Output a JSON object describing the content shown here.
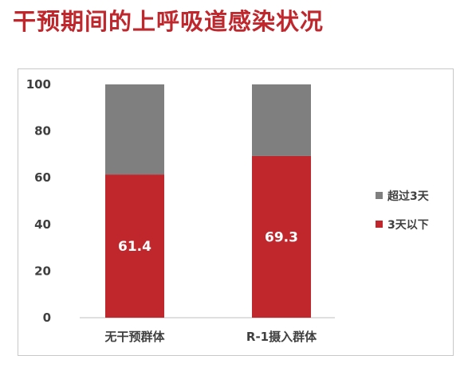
{
  "title": "干预期间的上呼吸道感染状况",
  "chart_data": {
    "type": "bar",
    "stacked": true,
    "categories": [
      "无干预群体",
      "R-1摄入群体"
    ],
    "series": [
      {
        "name": "3天以下",
        "values": [
          61.4,
          69.3
        ],
        "color": "#c0272d",
        "data_labels": [
          "61.4",
          "69.3"
        ]
      },
      {
        "name": "超过3天",
        "values": [
          38.6,
          30.7
        ],
        "color": "#7f7f80"
      }
    ],
    "ylim": [
      0,
      100
    ],
    "yticks": [
      0,
      20,
      40,
      60,
      80,
      100
    ],
    "xlabel": "",
    "ylabel": "",
    "grid": false,
    "legend_position": "right",
    "legend_order": [
      "超过3天",
      "3天以下"
    ]
  }
}
